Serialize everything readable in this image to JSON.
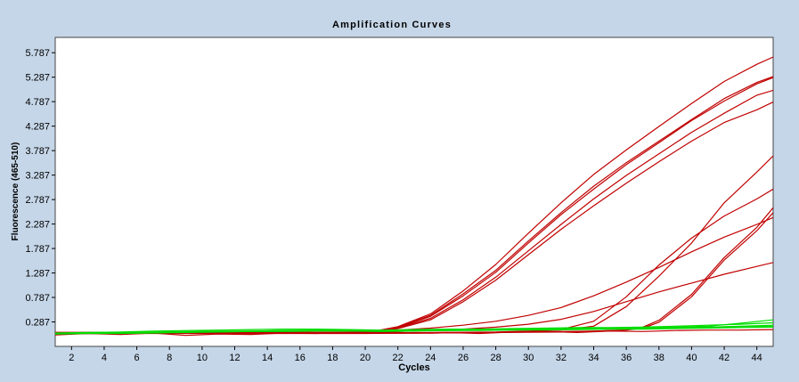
{
  "chart_data": {
    "type": "line",
    "title": "Amplification Curves",
    "xlabel": "Cycles",
    "ylabel": "Fluorescence (465-510)",
    "xlim": [
      1,
      45
    ],
    "ylim": [
      -0.213,
      6.1
    ],
    "xticks": [
      2,
      4,
      6,
      8,
      10,
      12,
      14,
      16,
      18,
      20,
      22,
      24,
      26,
      28,
      30,
      32,
      34,
      36,
      38,
      40,
      42,
      44
    ],
    "yticks": [
      0.287,
      0.787,
      1.287,
      1.787,
      2.287,
      2.787,
      3.287,
      3.787,
      4.287,
      4.787,
      5.287,
      5.787
    ],
    "ytick_labels": [
      "0.287",
      "0.787",
      "1.287",
      "1.787",
      "2.287",
      "2.787",
      "3.287",
      "3.787",
      "4.287",
      "4.787",
      "5.287",
      "5.787"
    ],
    "grid": false,
    "colors": {
      "plot_bg": "#ffffff",
      "frame_bg": "#c5d6e8",
      "positive": "#c00000",
      "negative": "#00dd00"
    },
    "series": [
      {
        "color": "#c00000",
        "x": [
          1,
          20,
          22,
          24,
          26,
          28,
          30,
          32,
          34,
          36,
          38,
          40,
          42,
          44,
          45
        ],
        "y": [
          0.06,
          0.06,
          0.18,
          0.42,
          0.86,
          1.34,
          1.94,
          2.52,
          3.06,
          3.54,
          3.98,
          4.42,
          4.85,
          5.18,
          5.3
        ]
      },
      {
        "color": "#c00000",
        "x": [
          1,
          20,
          22,
          24,
          26,
          28,
          30,
          32,
          34,
          36,
          38,
          40,
          42,
          44,
          45
        ],
        "y": [
          0.07,
          0.07,
          0.17,
          0.4,
          0.82,
          1.3,
          1.9,
          2.48,
          3.0,
          3.5,
          3.95,
          4.4,
          4.8,
          5.15,
          5.28
        ]
      },
      {
        "color": "#c00000",
        "x": [
          1,
          20,
          22,
          24,
          26,
          28,
          30,
          32,
          34,
          36,
          38,
          40,
          42,
          44,
          45
        ],
        "y": [
          0.05,
          0.06,
          0.19,
          0.45,
          0.92,
          1.46,
          2.1,
          2.72,
          3.3,
          3.8,
          4.28,
          4.75,
          5.2,
          5.55,
          5.7
        ]
      },
      {
        "color": "#c00000",
        "x": [
          1,
          20,
          22,
          24,
          26,
          28,
          30,
          32,
          34,
          36,
          38,
          40,
          42,
          44,
          45
        ],
        "y": [
          0.06,
          0.07,
          0.16,
          0.36,
          0.74,
          1.2,
          1.74,
          2.28,
          2.8,
          3.28,
          3.72,
          4.16,
          4.55,
          4.92,
          5.02
        ]
      },
      {
        "color": "#c00000",
        "x": [
          1,
          20,
          22,
          24,
          26,
          28,
          30,
          32,
          34,
          36,
          38,
          40,
          42,
          44,
          45
        ],
        "y": [
          0.06,
          0.06,
          0.15,
          0.33,
          0.7,
          1.14,
          1.66,
          2.18,
          2.66,
          3.12,
          3.56,
          3.98,
          4.36,
          4.62,
          4.78
        ]
      },
      {
        "color": "#c00000",
        "x": [
          1,
          20,
          22,
          24,
          26,
          28,
          30,
          32,
          34,
          36,
          38,
          40,
          42,
          44,
          45
        ],
        "y": [
          0.07,
          0.07,
          0.12,
          0.16,
          0.22,
          0.3,
          0.42,
          0.58,
          0.82,
          1.1,
          1.4,
          1.72,
          2.02,
          2.28,
          2.42
        ]
      },
      {
        "color": "#c00000",
        "x": [
          1,
          20,
          22,
          24,
          26,
          28,
          30,
          32,
          34,
          36,
          38,
          40,
          42,
          44,
          45
        ],
        "y": [
          0.06,
          0.06,
          0.09,
          0.11,
          0.14,
          0.18,
          0.24,
          0.34,
          0.5,
          0.7,
          0.9,
          1.08,
          1.26,
          1.42,
          1.5
        ]
      },
      {
        "color": "#c00000",
        "x": [
          1,
          20,
          24,
          28,
          30,
          32,
          34,
          36,
          38,
          40,
          42,
          44,
          45
        ],
        "y": [
          0.06,
          0.06,
          0.07,
          0.08,
          0.1,
          0.13,
          0.3,
          0.8,
          1.45,
          2.0,
          2.45,
          2.8,
          3.0
        ]
      },
      {
        "color": "#c00000",
        "x": [
          1,
          20,
          24,
          28,
          30,
          32,
          34,
          36,
          38,
          40,
          42,
          44,
          45
        ],
        "y": [
          0.05,
          0.06,
          0.06,
          0.07,
          0.09,
          0.12,
          0.2,
          0.6,
          1.22,
          1.9,
          2.72,
          3.35,
          3.68
        ]
      },
      {
        "color": "#c00000",
        "x": [
          1,
          20,
          24,
          28,
          32,
          34,
          36,
          37,
          38,
          40,
          42,
          44,
          45
        ],
        "y": [
          0.05,
          0.05,
          0.06,
          0.07,
          0.09,
          0.1,
          0.12,
          0.18,
          0.32,
          0.85,
          1.6,
          2.22,
          2.62
        ]
      },
      {
        "color": "#c00000",
        "x": [
          1,
          20,
          24,
          28,
          32,
          34,
          36,
          37,
          38,
          40,
          42,
          44,
          45
        ],
        "y": [
          0.06,
          0.06,
          0.06,
          0.07,
          0.08,
          0.1,
          0.12,
          0.16,
          0.28,
          0.8,
          1.55,
          2.15,
          2.52
        ]
      },
      {
        "color": "#c00000",
        "x": [
          1,
          3,
          5,
          7,
          9,
          11,
          13,
          15,
          17,
          19,
          21,
          23,
          25,
          27,
          29,
          31,
          33,
          35,
          37,
          39,
          41,
          43,
          45
        ],
        "y": [
          0.02,
          0.05,
          0.03,
          0.06,
          0.01,
          0.04,
          0.03,
          0.06,
          0.05,
          0.07,
          0.08,
          0.06,
          0.07,
          0.05,
          0.08,
          0.09,
          0.07,
          0.1,
          0.09,
          0.11,
          0.12,
          0.12,
          0.13
        ]
      },
      {
        "color": "#00dd00",
        "x": [
          1,
          3,
          5,
          7,
          9,
          11,
          13,
          15,
          17,
          19,
          21,
          23,
          25,
          27,
          29,
          31,
          33,
          35,
          37,
          39,
          41,
          43,
          45
        ],
        "y": [
          0.05,
          0.06,
          0.07,
          0.08,
          0.09,
          0.1,
          0.1,
          0.11,
          0.12,
          0.11,
          0.1,
          0.11,
          0.12,
          0.13,
          0.13,
          0.14,
          0.15,
          0.16,
          0.17,
          0.18,
          0.2,
          0.26,
          0.33
        ]
      },
      {
        "color": "#00dd00",
        "x": [
          1,
          3,
          5,
          7,
          9,
          11,
          13,
          15,
          17,
          19,
          21,
          23,
          25,
          27,
          29,
          31,
          33,
          35,
          37,
          39,
          41,
          43,
          45
        ],
        "y": [
          0.06,
          0.07,
          0.08,
          0.1,
          0.11,
          0.12,
          0.13,
          0.14,
          0.14,
          0.13,
          0.12,
          0.13,
          0.14,
          0.14,
          0.15,
          0.16,
          0.17,
          0.17,
          0.18,
          0.2,
          0.22,
          0.24,
          0.27
        ]
      },
      {
        "color": "#00dd00",
        "x": [
          1,
          3,
          5,
          7,
          9,
          11,
          13,
          15,
          17,
          19,
          21,
          23,
          25,
          27,
          29,
          31,
          33,
          35,
          37,
          39,
          41,
          43,
          45
        ],
        "y": [
          0.05,
          0.06,
          0.06,
          0.07,
          0.08,
          0.09,
          0.09,
          0.1,
          0.11,
          0.1,
          0.1,
          0.11,
          0.11,
          0.12,
          0.12,
          0.13,
          0.14,
          0.15,
          0.15,
          0.16,
          0.18,
          0.2,
          0.22
        ]
      },
      {
        "color": "#00dd00",
        "x": [
          1,
          3,
          5,
          7,
          9,
          11,
          13,
          15,
          17,
          19,
          21,
          23,
          25,
          27,
          29,
          31,
          33,
          35,
          37,
          39,
          41,
          43,
          45
        ],
        "y": [
          0.04,
          0.05,
          0.05,
          0.06,
          0.07,
          0.08,
          0.09,
          0.09,
          0.1,
          0.1,
          0.09,
          0.1,
          0.11,
          0.11,
          0.12,
          0.12,
          0.13,
          0.14,
          0.14,
          0.15,
          0.16,
          0.17,
          0.18
        ]
      },
      {
        "color": "#00dd00",
        "x": [
          1,
          3,
          5,
          7,
          9,
          11,
          13,
          15,
          17,
          19,
          21,
          23,
          25,
          27,
          29,
          31,
          33,
          35,
          37,
          39,
          41,
          43,
          45
        ],
        "y": [
          0.05,
          0.06,
          0.07,
          0.07,
          0.08,
          0.09,
          0.1,
          0.11,
          0.11,
          0.11,
          0.11,
          0.11,
          0.12,
          0.12,
          0.13,
          0.14,
          0.14,
          0.15,
          0.16,
          0.17,
          0.18,
          0.19,
          0.2
        ]
      }
    ]
  }
}
